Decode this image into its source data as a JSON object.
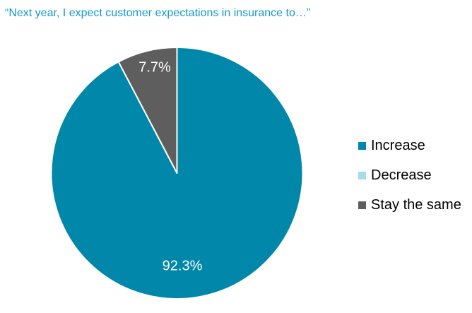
{
  "title": "“Next year, I expect customer expectations in insurance to…”",
  "chart_data": {
    "type": "pie",
    "categories": [
      "Increase",
      "Decrease",
      "Stay the same"
    ],
    "values": [
      92.3,
      0,
      7.7
    ],
    "labels": [
      "92.3%",
      "",
      "7.7%"
    ],
    "colors": [
      "#0087AA",
      "#A8DBE9",
      "#5E5E5E"
    ],
    "title": "“Next year, I expect customer expectations in insurance to…”",
    "legend_position": "right",
    "start_angle_deg": 0,
    "direction": "clockwise",
    "label_color": "#ffffff",
    "slice_border_color": "#ffffff"
  },
  "legend": {
    "items": [
      {
        "label": "Increase",
        "color": "#0087AA"
      },
      {
        "label": "Decrease",
        "color": "#A8DBE9"
      },
      {
        "label": "Stay the same",
        "color": "#5E5E5E"
      }
    ]
  },
  "colors": {
    "title_text": "#1598CE",
    "legend_text": "#000000",
    "background": "#ffffff"
  }
}
